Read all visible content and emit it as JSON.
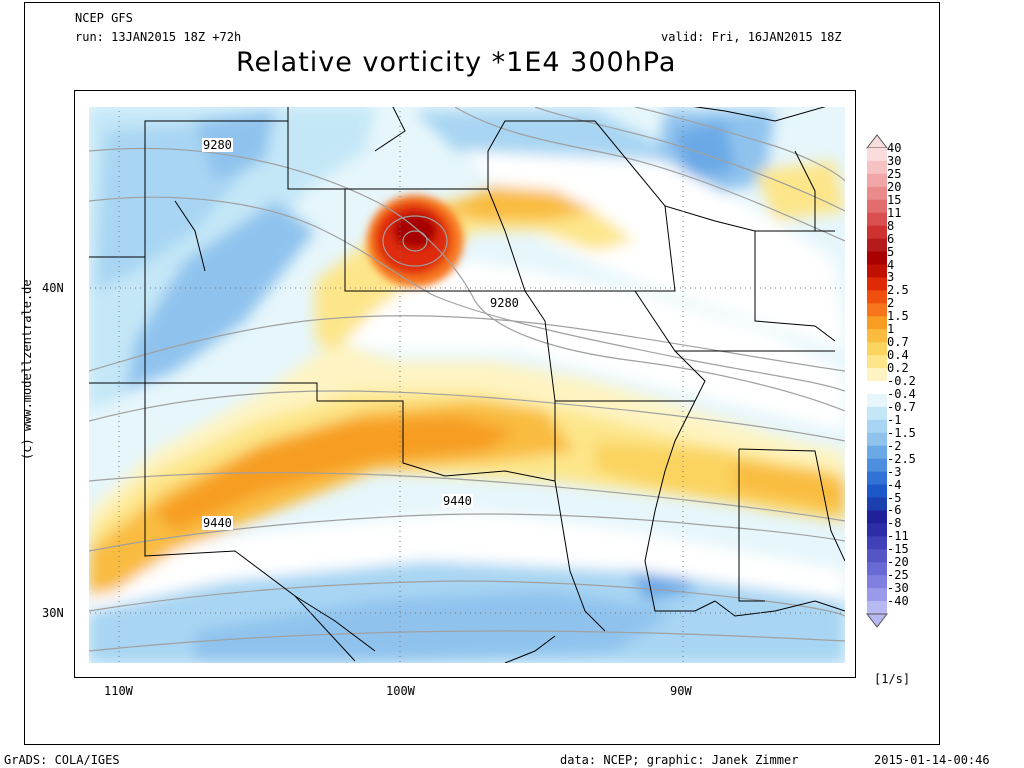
{
  "header": {
    "model": "NCEP GFS",
    "run": "run: 13JAN2015 18Z +72h",
    "valid": "valid: Fri, 16JAN2015 18Z",
    "title": "Relative vorticity *1E4 300hPa"
  },
  "map": {
    "lat_labels": [
      "40N",
      "30N"
    ],
    "lon_labels": [
      "110W",
      "100W",
      "90W"
    ],
    "contour_labels": [
      "9280",
      "9280",
      "9440",
      "9440"
    ],
    "palette": {
      "orange": "#f7a81f",
      "red": "#d81f0e",
      "dark_red": "#a80000",
      "blue": "#8fc3ee",
      "light_blue": "#c4e7f7"
    }
  },
  "colorbar": {
    "labels": [
      "40",
      "30",
      "25",
      "20",
      "15",
      "11",
      "8",
      "6",
      "5",
      "4",
      "3",
      "2.5",
      "2",
      "1.5",
      "1",
      "0.7",
      "0.4",
      "0.2",
      "-0.2",
      "-0.4",
      "-0.7",
      "-1",
      "-1.5",
      "-2",
      "-2.5",
      "-3",
      "-4",
      "-5",
      "-6",
      "-8",
      "-11",
      "-15",
      "-20",
      "-25",
      "-30",
      "-40"
    ],
    "colors": [
      "#fbdcdc",
      "#f7c2c2",
      "#f1a7a7",
      "#ea8a8a",
      "#e26d6d",
      "#d94f4f",
      "#cf3030",
      "#b51b1b",
      "#a80000",
      "#c01000",
      "#df2a08",
      "#f0500e",
      "#f7751a",
      "#f79d22",
      "#f9bc3f",
      "#fbd35f",
      "#fde68a",
      "#fef4c3",
      "#ffffff",
      "#e6f6fb",
      "#c4e7f7",
      "#a7d5f3",
      "#8fc3ee",
      "#6aa9e6",
      "#4d8fde",
      "#3072d5",
      "#1c58c8",
      "#1c3fb0",
      "#20209a",
      "#2d2da8",
      "#4040b8",
      "#5555c6",
      "#6a6ad4",
      "#8080e0",
      "#9a9aea",
      "#b8b8f2"
    ],
    "unit": "[1/s]"
  },
  "credits": {
    "watermark": "(c) www.modellzentrale.de",
    "grads": "GrADS: COLA/IGES",
    "data": "data: NCEP; graphic: Janek Zimmer",
    "timestamp": "2015-01-14-00:46"
  }
}
